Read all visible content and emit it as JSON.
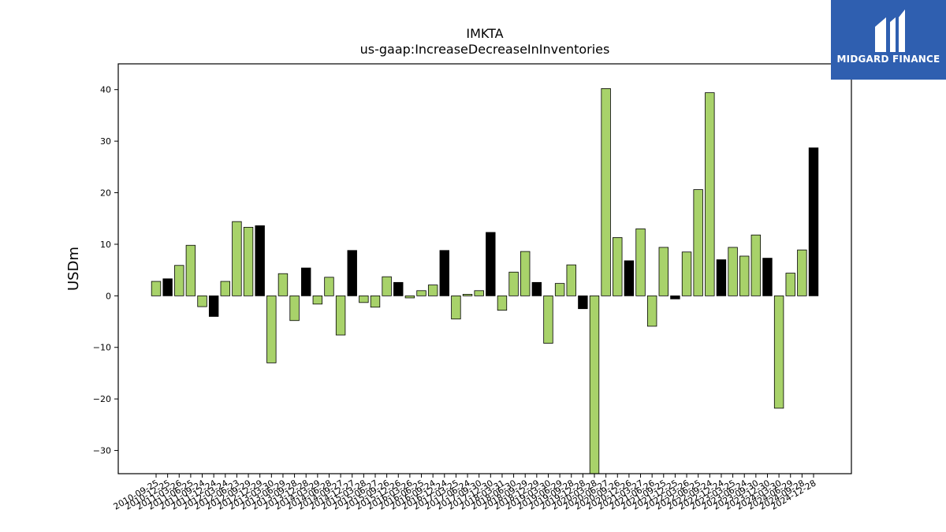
{
  "brand": {
    "name": "MIDGARD FINANCE",
    "logo_icon": "midgard-logo-icon",
    "color": "#2f5fb0"
  },
  "chart_data": {
    "type": "bar",
    "title": "IMKTA",
    "subtitle": "us-gaap:IncreaseDecreaseInInventories",
    "ylabel": "USDm",
    "xlabel": "",
    "ylim": [
      -34.5,
      45
    ],
    "yticks": [
      -30,
      -20,
      -10,
      0,
      10,
      20,
      30,
      40
    ],
    "grid": false,
    "colors": {
      "quarterly": "#a8d26a",
      "annual": "#000000",
      "edge": "#000000"
    },
    "categories": [
      "2010-09-25",
      "2010-12-25",
      "2011-03-26",
      "2011-06-25",
      "2011-09-24",
      "2011-12-24",
      "2012-03-24",
      "2012-06-23",
      "2012-09-29",
      "2012-12-29",
      "2013-03-30",
      "2013-06-29",
      "2013-09-28",
      "2013-12-28",
      "2014-03-29",
      "2014-06-28",
      "2014-09-27",
      "2014-12-27",
      "2015-03-28",
      "2015-06-27",
      "2015-09-26",
      "2015-12-26",
      "2016-03-26",
      "2016-06-25",
      "2016-09-24",
      "2016-12-24",
      "2017-03-25",
      "2017-06-24",
      "2017-09-30",
      "2017-12-30",
      "2018-03-31",
      "2018-06-30",
      "2018-09-29",
      "2018-12-29",
      "2019-03-30",
      "2019-06-29",
      "2019-09-28",
      "2019-12-28",
      "2020-03-28",
      "2020-06-27",
      "2020-09-26",
      "2020-12-26",
      "2021-03-27",
      "2021-06-26",
      "2021-09-25",
      "2021-12-25",
      "2022-03-26",
      "2022-06-25",
      "2022-09-24",
      "2022-12-24",
      "2023-03-25",
      "2023-06-24",
      "2023-09-30",
      "2023-12-30",
      "2024-03-30",
      "2024-06-29",
      "2024-09-28",
      "2024-12-28"
    ],
    "values": [
      2.8,
      3.3,
      5.9,
      9.8,
      -2.1,
      -4.0,
      2.8,
      14.4,
      13.3,
      13.6,
      -13.0,
      4.3,
      -4.8,
      5.4,
      -1.6,
      3.6,
      -7.6,
      8.8,
      -1.3,
      -2.2,
      3.7,
      2.6,
      -0.4,
      1.0,
      2.1,
      8.8,
      -4.5,
      0.3,
      1.0,
      12.3,
      -2.8,
      4.6,
      8.6,
      2.6,
      -9.2,
      2.4,
      6.0,
      -2.5,
      -34.5,
      40.2,
      11.3,
      6.8,
      13.0,
      -5.9,
      9.4,
      -0.6,
      8.5,
      20.6,
      39.4,
      7.0,
      9.4,
      7.7,
      11.8,
      7.3,
      -21.8,
      4.4,
      8.9,
      28.7
    ],
    "annual": [
      false,
      true,
      false,
      false,
      false,
      true,
      false,
      false,
      false,
      true,
      false,
      false,
      false,
      true,
      false,
      false,
      false,
      true,
      false,
      false,
      false,
      true,
      false,
      false,
      false,
      true,
      false,
      false,
      false,
      true,
      false,
      false,
      false,
      true,
      false,
      false,
      false,
      true,
      false,
      false,
      false,
      true,
      false,
      false,
      false,
      true,
      false,
      false,
      false,
      true,
      false,
      false,
      false,
      true,
      false,
      false,
      false,
      true
    ]
  }
}
